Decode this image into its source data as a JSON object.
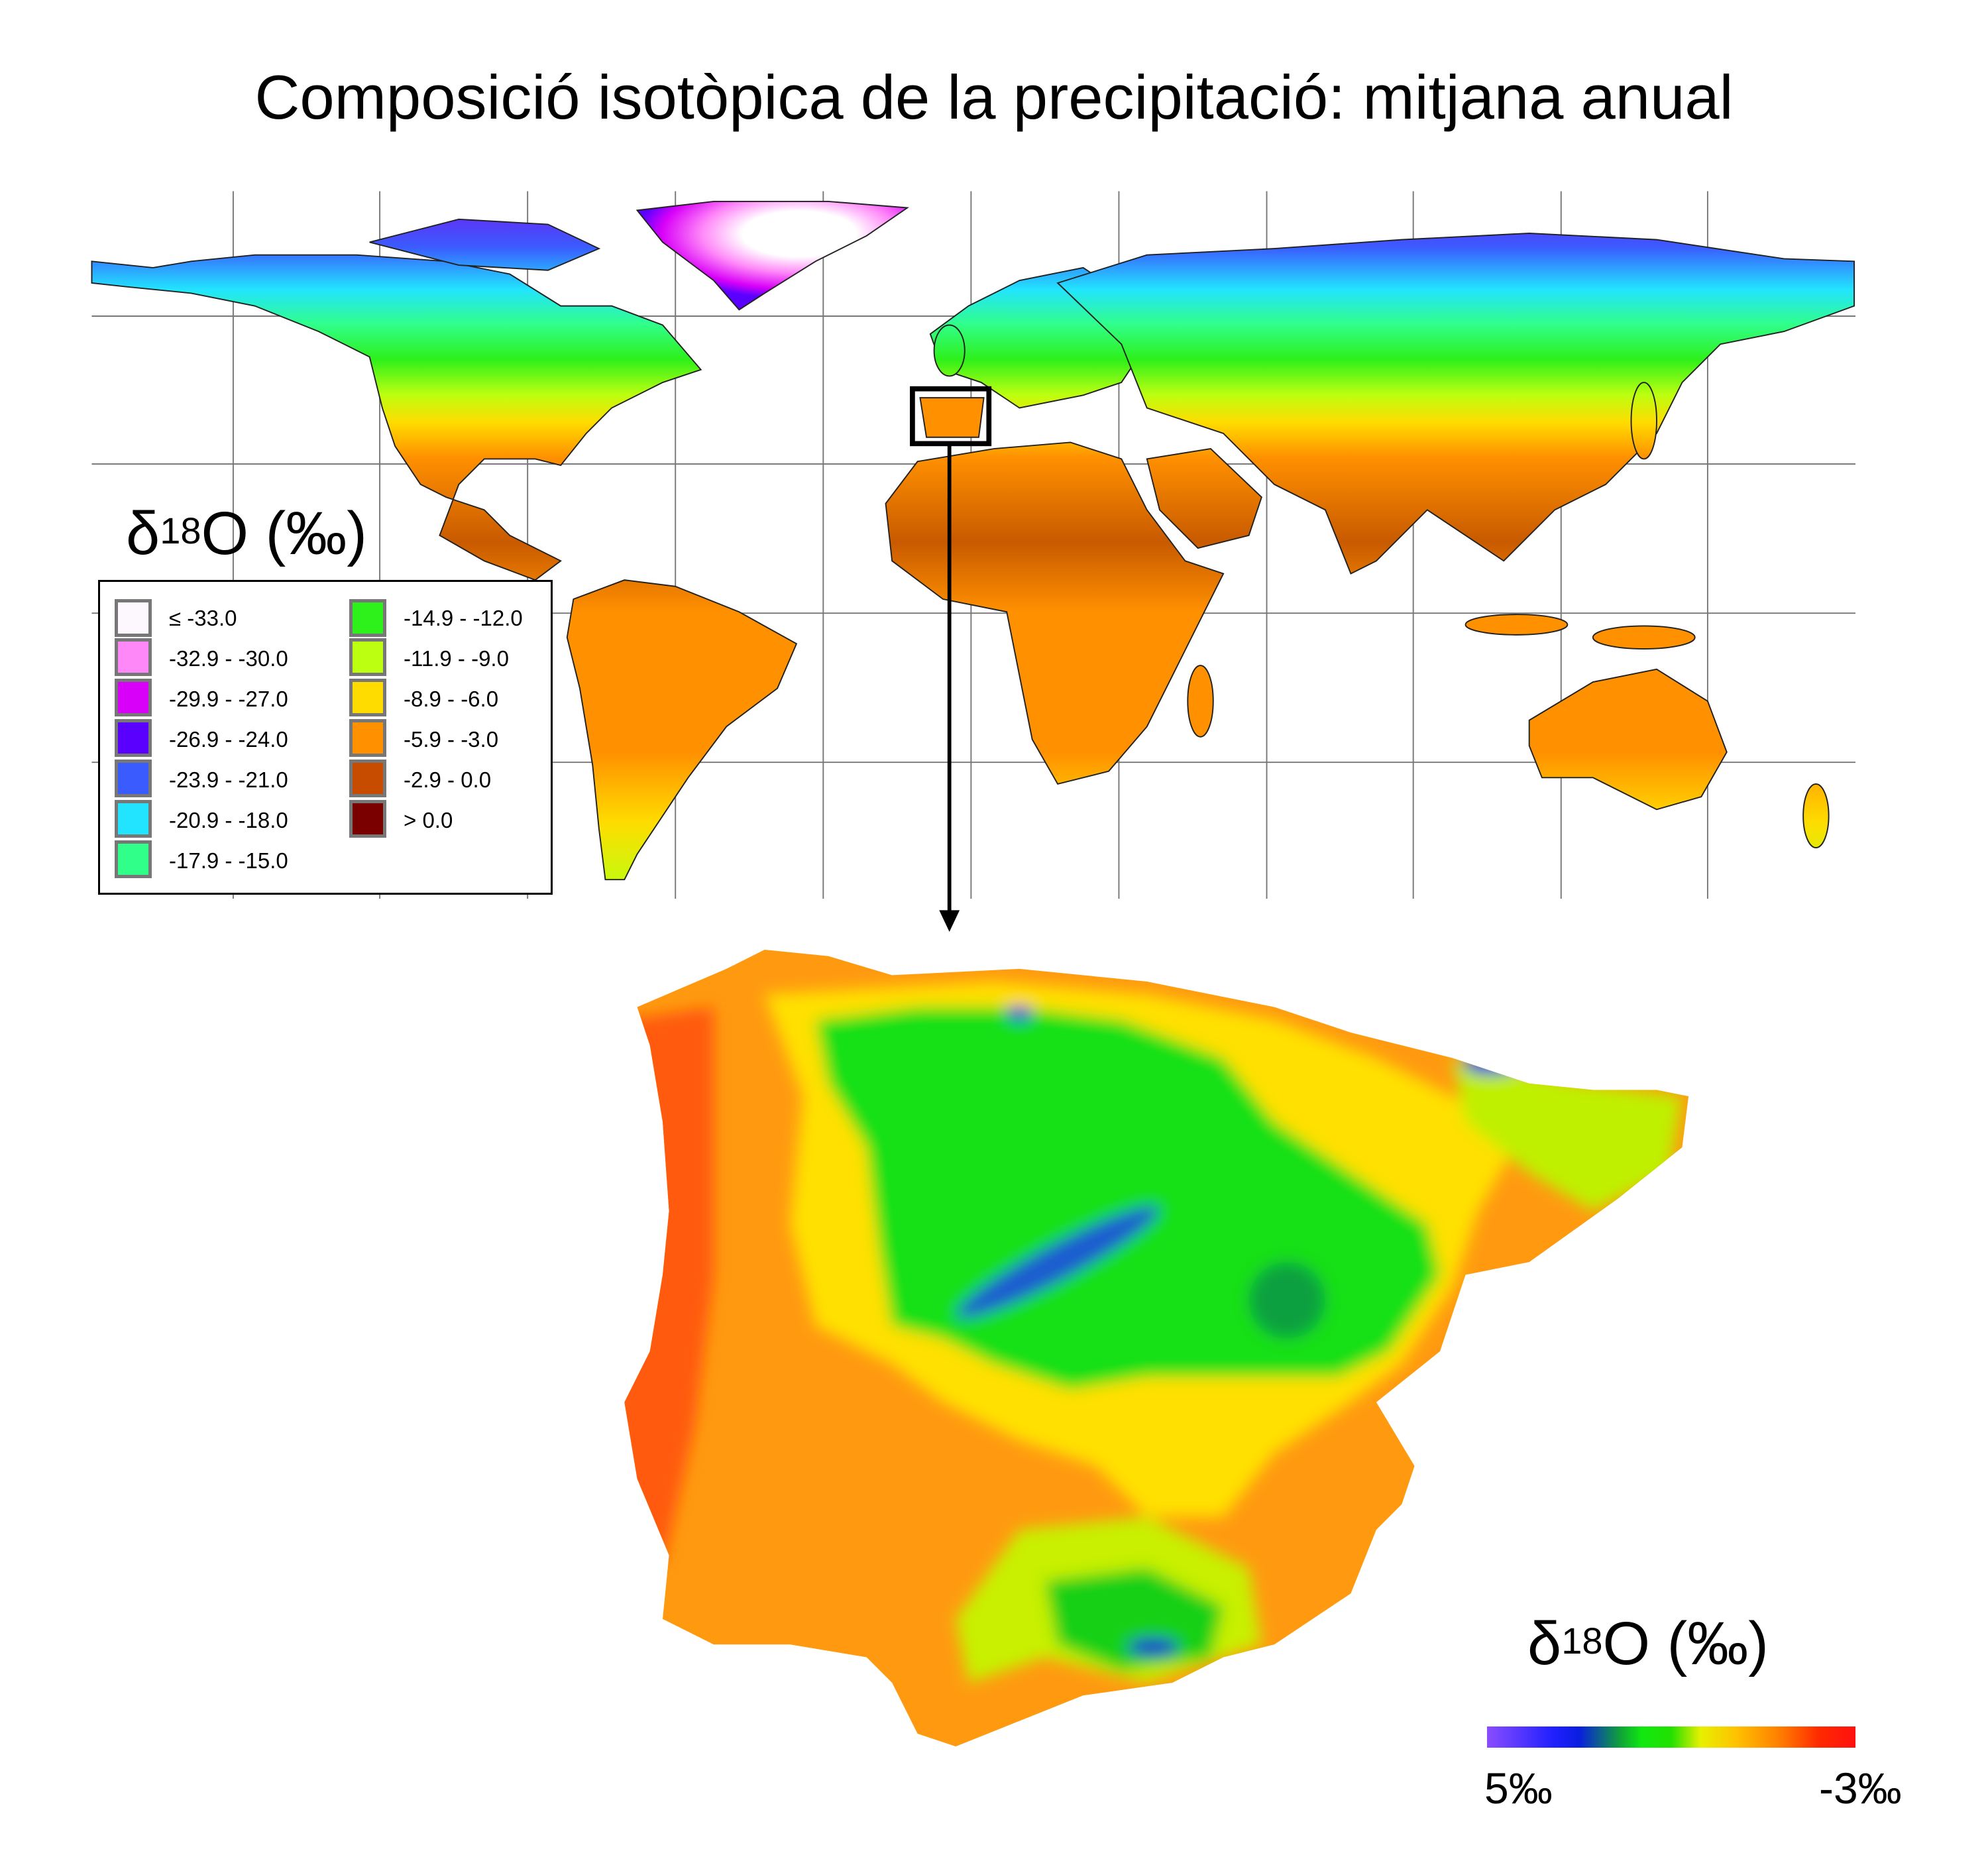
{
  "title": "Composició isotòpica de la precipitació: mitjana anual",
  "world_map": {
    "legend_title": {
      "delta": "δ",
      "mass": "18",
      "rest": "O (‰)"
    },
    "legend_items": [
      {
        "label": "≤ -33.0",
        "color": "#fdf8fd"
      },
      {
        "label": "-32.9 - -30.0",
        "color": "#ff88f8"
      },
      {
        "label": "-29.9 - -27.0",
        "color": "#d800f8"
      },
      {
        "label": "-26.9 - -24.0",
        "color": "#5a00ff"
      },
      {
        "label": "-23.9 - -21.0",
        "color": "#3a5cff"
      },
      {
        "label": "-20.9 - -18.0",
        "color": "#22e4ff"
      },
      {
        "label": "-17.9 - -15.0",
        "color": "#30ff8a"
      },
      {
        "label": "-14.9 - -12.0",
        "color": "#2ef01a"
      },
      {
        "label": "-11.9 - -9.0",
        "color": "#bcff10"
      },
      {
        "label": "-8.9 - -6.0",
        "color": "#ffdc00"
      },
      {
        "label": "-5.9 - -3.0",
        "color": "#ff9000"
      },
      {
        "label": "-2.9 - 0.0",
        "color": "#c84c00"
      },
      {
        "label": "> 0.0",
        "color": "#7a0000"
      }
    ]
  },
  "inset_map": {
    "legend_title": {
      "delta": "δ",
      "mass": "18",
      "rest": "O (‰)"
    },
    "colorbar_min_label": "5‰",
    "colorbar_max_label": "-3‰"
  }
}
